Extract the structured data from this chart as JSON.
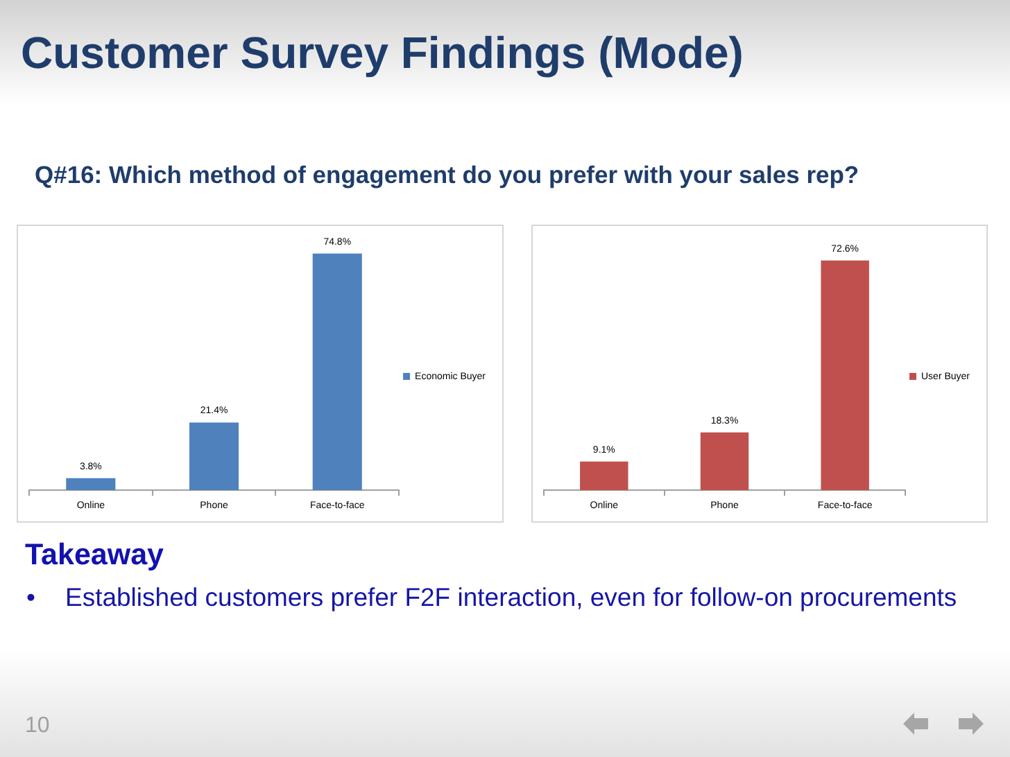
{
  "chart_data": [
    {
      "type": "bar",
      "title": "Customer Survey Findings (Mode)",
      "subtitle": "Q#16: Which method of engagement do you prefer with your sales rep?",
      "categories": [
        "Online",
        "Phone",
        "Face-to-face"
      ],
      "series": [
        {
          "name": "Economic Buyer",
          "color": "#4f81bd",
          "values": [
            3.8,
            21.4,
            74.8
          ],
          "value_labels": [
            "3.8%",
            "21.4%",
            "74.8%"
          ]
        }
      ],
      "legend": "right",
      "annotations": [
        "Takeaway",
        "• Established customers prefer F2F interaction, even for follow-on procurements",
        "10"
      ]
    },
    {
      "type": "bar",
      "categories": [
        "Online",
        "Phone",
        "Face-to-face"
      ],
      "series": [
        {
          "name": "User Buyer",
          "color": "#c0504d",
          "values": [
            9.1,
            18.3,
            72.6
          ],
          "value_labels": [
            "9.1%",
            "18.3%",
            "72.6%"
          ]
        }
      ],
      "legend": "right"
    }
  ]
}
